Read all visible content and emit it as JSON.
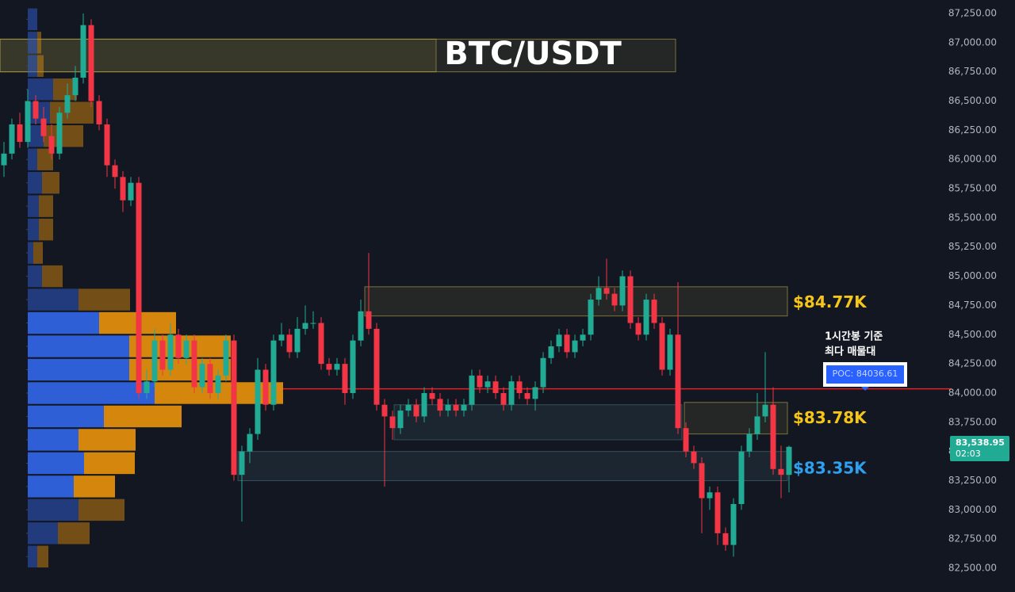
{
  "chart_data": {
    "type": "candlestick",
    "title": "BTC/USDT",
    "ylim": [
      82297,
      87365
    ],
    "yticks": [
      {
        "value": 82500,
        "label": "82,500.00"
      },
      {
        "value": 82750,
        "label": "82,750.00"
      },
      {
        "value": 83000,
        "label": "83,000.00"
      },
      {
        "value": 83250,
        "label": "83,250.00"
      },
      {
        "value": 83500,
        "label": "83,500.00"
      },
      {
        "value": 83750,
        "label": "83,750.00"
      },
      {
        "value": 84000,
        "label": "84,000.00"
      },
      {
        "value": 84250,
        "label": "84,250.00"
      },
      {
        "value": 84500,
        "label": "84,500.00"
      },
      {
        "value": 84750,
        "label": "84,750.00"
      },
      {
        "value": 85000,
        "label": "85,000.00"
      },
      {
        "value": 85250,
        "label": "85,250.00"
      },
      {
        "value": 85500,
        "label": "85,500.00"
      },
      {
        "value": 85750,
        "label": "85,750.00"
      },
      {
        "value": 86000,
        "label": "86,000.00"
      },
      {
        "value": 86250,
        "label": "86,250.00"
      },
      {
        "value": 86500,
        "label": "86,500.00"
      },
      {
        "value": 86750,
        "label": "86,750.00"
      },
      {
        "value": 87000,
        "label": "87,000.00"
      },
      {
        "value": 87250,
        "label": "87,250.00"
      }
    ],
    "colors": {
      "up": "#22ab94",
      "down": "#f23645",
      "buy": "#2f5fd6",
      "sell": "#d4870c",
      "poc": "#e0202a"
    },
    "candles": [
      [
        85950,
        86150,
        85850,
        86050
      ],
      [
        86050,
        86350,
        86000,
        86300
      ],
      [
        86300,
        86400,
        86100,
        86150
      ],
      [
        86150,
        86600,
        86100,
        86500
      ],
      [
        86500,
        86550,
        86300,
        86350
      ],
      [
        86350,
        86450,
        86150,
        86200
      ],
      [
        86200,
        86300,
        86000,
        86050
      ],
      [
        86050,
        86450,
        86000,
        86400
      ],
      [
        86400,
        86650,
        86350,
        86550
      ],
      [
        86550,
        86800,
        86500,
        86700
      ],
      [
        86700,
        87250,
        86650,
        87150
      ],
      [
        87150,
        87200,
        86450,
        86500
      ],
      [
        86500,
        86550,
        86250,
        86300
      ],
      [
        86300,
        86350,
        85850,
        85950
      ],
      [
        85950,
        86000,
        85750,
        85850
      ],
      [
        85850,
        85900,
        85550,
        85650
      ],
      [
        85650,
        85850,
        85600,
        85800
      ],
      [
        85800,
        85850,
        83950,
        84000
      ],
      [
        84000,
        84200,
        83950,
        84100
      ],
      [
        84100,
        84550,
        84050,
        84450
      ],
      [
        84450,
        84500,
        84150,
        84200
      ],
      [
        84200,
        84600,
        84150,
        84500
      ],
      [
        84500,
        84550,
        84250,
        84300
      ],
      [
        84300,
        84500,
        84250,
        84450
      ],
      [
        84450,
        84500,
        84000,
        84050
      ],
      [
        84050,
        84300,
        84000,
        84250
      ],
      [
        84250,
        84300,
        83950,
        84000
      ],
      [
        84000,
        84200,
        83950,
        84150
      ],
      [
        84150,
        84500,
        84100,
        84450
      ],
      [
        84450,
        84500,
        83250,
        83300
      ],
      [
        83300,
        83550,
        82900,
        83500
      ],
      [
        83500,
        83700,
        83400,
        83650
      ],
      [
        83650,
        84300,
        83600,
        84200
      ],
      [
        84200,
        84250,
        83850,
        83900
      ],
      [
        83900,
        84500,
        83850,
        84450
      ],
      [
        84450,
        84600,
        84400,
        84500
      ],
      [
        84500,
        84550,
        84300,
        84350
      ],
      [
        84350,
        84650,
        84300,
        84550
      ],
      [
        84550,
        84750,
        84500,
        84600
      ],
      [
        84600,
        84700,
        84550,
        84600
      ],
      [
        84600,
        84650,
        84200,
        84250
      ],
      [
        84250,
        84300,
        84150,
        84200
      ],
      [
        84200,
        84300,
        84150,
        84250
      ],
      [
        84250,
        84300,
        83900,
        84000
      ],
      [
        84000,
        84500,
        83950,
        84450
      ],
      [
        84450,
        84800,
        84400,
        84700
      ],
      [
        84700,
        85200,
        84500,
        84550
      ],
      [
        84550,
        84600,
        83850,
        83900
      ],
      [
        83900,
        83950,
        83200,
        83800
      ],
      [
        83800,
        83850,
        83600,
        83700
      ],
      [
        83700,
        83900,
        83650,
        83850
      ],
      [
        83850,
        83950,
        83800,
        83900
      ],
      [
        83900,
        83950,
        83750,
        83800
      ],
      [
        83800,
        84050,
        83750,
        84000
      ],
      [
        84000,
        84050,
        83900,
        83950
      ],
      [
        83950,
        84000,
        83800,
        83850
      ],
      [
        83850,
        83950,
        83800,
        83900
      ],
      [
        83900,
        83950,
        83800,
        83850
      ],
      [
        83850,
        83950,
        83800,
        83900
      ],
      [
        83900,
        84200,
        83850,
        84150
      ],
      [
        84150,
        84200,
        84000,
        84050
      ],
      [
        84050,
        84150,
        84000,
        84100
      ],
      [
        84100,
        84150,
        83950,
        84000
      ],
      [
        84000,
        84050,
        83850,
        83900
      ],
      [
        83900,
        84150,
        83850,
        84100
      ],
      [
        84100,
        84150,
        83950,
        84000
      ],
      [
        84000,
        84050,
        83900,
        83950
      ],
      [
        83950,
        84100,
        83850,
        84050
      ],
      [
        84050,
        84350,
        84000,
        84300
      ],
      [
        84300,
        84450,
        84250,
        84400
      ],
      [
        84400,
        84550,
        84350,
        84500
      ],
      [
        84500,
        84550,
        84300,
        84350
      ],
      [
        84350,
        84500,
        84300,
        84450
      ],
      [
        84450,
        84550,
        84400,
        84500
      ],
      [
        84500,
        84850,
        84450,
        84800
      ],
      [
        84800,
        85000,
        84750,
        84900
      ],
      [
        84900,
        85150,
        84800,
        84850
      ],
      [
        84850,
        84900,
        84700,
        84750
      ],
      [
        84750,
        85050,
        84700,
        85000
      ],
      [
        85000,
        85050,
        84550,
        84600
      ],
      [
        84600,
        84650,
        84450,
        84500
      ],
      [
        84500,
        84850,
        84450,
        84800
      ],
      [
        84800,
        84850,
        84550,
        84600
      ],
      [
        84600,
        84650,
        84150,
        84200
      ],
      [
        84200,
        84550,
        84150,
        84500
      ],
      [
        84500,
        84950,
        83650,
        83700
      ],
      [
        83700,
        83750,
        83450,
        83500
      ],
      [
        83500,
        83550,
        83350,
        83400
      ],
      [
        83400,
        83450,
        82800,
        83100
      ],
      [
        83100,
        83200,
        83000,
        83150
      ],
      [
        83150,
        83200,
        82700,
        82800
      ],
      [
        82800,
        82850,
        82650,
        82700
      ],
      [
        82700,
        83100,
        82600,
        83050
      ],
      [
        83050,
        83550,
        83000,
        83500
      ],
      [
        83500,
        83700,
        83450,
        83650
      ],
      [
        83650,
        84000,
        83600,
        83800
      ],
      [
        83800,
        84350,
        83750,
        83900
      ],
      [
        83900,
        84050,
        83300,
        83350
      ],
      [
        83350,
        83550,
        83100,
        83300
      ],
      [
        83300,
        83550,
        83150,
        83540
      ]
    ],
    "volume_profile": {
      "levels": [
        87200,
        87000,
        86800,
        86600,
        86400,
        86200,
        86000,
        85800,
        85600,
        85400,
        85200,
        85000,
        84800,
        84600,
        84400,
        84200,
        84000,
        83800,
        83600,
        83400,
        83200,
        83000,
        82800,
        82600
      ],
      "buy": [
        12,
        12,
        12,
        32,
        28,
        20,
        12,
        18,
        14,
        14,
        7,
        18,
        64,
        90,
        128,
        128,
        160,
        96,
        64,
        71,
        58,
        64,
        38,
        12
      ],
      "sell": [
        0,
        5,
        8,
        30,
        55,
        50,
        20,
        22,
        18,
        18,
        12,
        26,
        65,
        97,
        128,
        128,
        162,
        98,
        72,
        64,
        52,
        58,
        40,
        14
      ]
    },
    "zones": [
      {
        "low": 86750,
        "high": 87030
      },
      {
        "low": 84660,
        "high": 84910,
        "level": 84770,
        "label": "$84.77K",
        "color": "#f5c518"
      },
      {
        "low": 83650,
        "high": 83920,
        "level": 83780,
        "label": "$83.78K",
        "color": "#f5c518"
      },
      {
        "low": 83600,
        "high": 83900
      },
      {
        "low": 83250,
        "high": 83500,
        "level": 83350,
        "label": "$83.35K",
        "color": "#2ea0f0"
      }
    ],
    "poc": {
      "value": 84036.61,
      "label": "POC: 84036.61",
      "note": [
        "1시간봉 기준",
        "최다 매물대"
      ]
    },
    "last_price": {
      "value": 83538.95,
      "label": "83,538.95",
      "countdown": "02:03"
    }
  }
}
